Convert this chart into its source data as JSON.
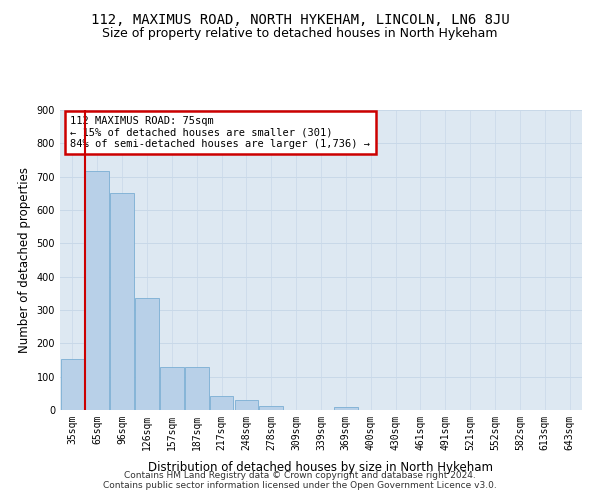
{
  "title": "112, MAXIMUS ROAD, NORTH HYKEHAM, LINCOLN, LN6 8JU",
  "subtitle": "Size of property relative to detached houses in North Hykeham",
  "xlabel": "Distribution of detached houses by size in North Hykeham",
  "ylabel": "Number of detached properties",
  "categories": [
    "35sqm",
    "65sqm",
    "96sqm",
    "126sqm",
    "157sqm",
    "187sqm",
    "217sqm",
    "248sqm",
    "278sqm",
    "309sqm",
    "339sqm",
    "369sqm",
    "400sqm",
    "430sqm",
    "461sqm",
    "491sqm",
    "521sqm",
    "552sqm",
    "582sqm",
    "613sqm",
    "643sqm"
  ],
  "values": [
    152,
    717,
    652,
    337,
    129,
    129,
    42,
    31,
    13,
    0,
    0,
    9,
    0,
    0,
    0,
    0,
    0,
    0,
    0,
    0,
    0
  ],
  "bar_color": "#b8d0e8",
  "bar_edge_color": "#7aaed4",
  "vline_x": 0.5,
  "vline_color": "#cc0000",
  "annotation_text": "112 MAXIMUS ROAD: 75sqm\n← 15% of detached houses are smaller (301)\n84% of semi-detached houses are larger (1,736) →",
  "annotation_box_color": "#cc0000",
  "ylim": [
    0,
    900
  ],
  "yticks": [
    0,
    100,
    200,
    300,
    400,
    500,
    600,
    700,
    800,
    900
  ],
  "footnote": "Contains HM Land Registry data © Crown copyright and database right 2024.\nContains public sector information licensed under the Open Government Licence v3.0.",
  "title_fontsize": 10,
  "subtitle_fontsize": 9,
  "xlabel_fontsize": 8.5,
  "ylabel_fontsize": 8.5,
  "tick_fontsize": 7,
  "annotation_fontsize": 7.5,
  "footnote_fontsize": 6.5,
  "bg_color": "#ffffff",
  "grid_color": "#c8d8e8",
  "plot_bg_color": "#dde8f2"
}
